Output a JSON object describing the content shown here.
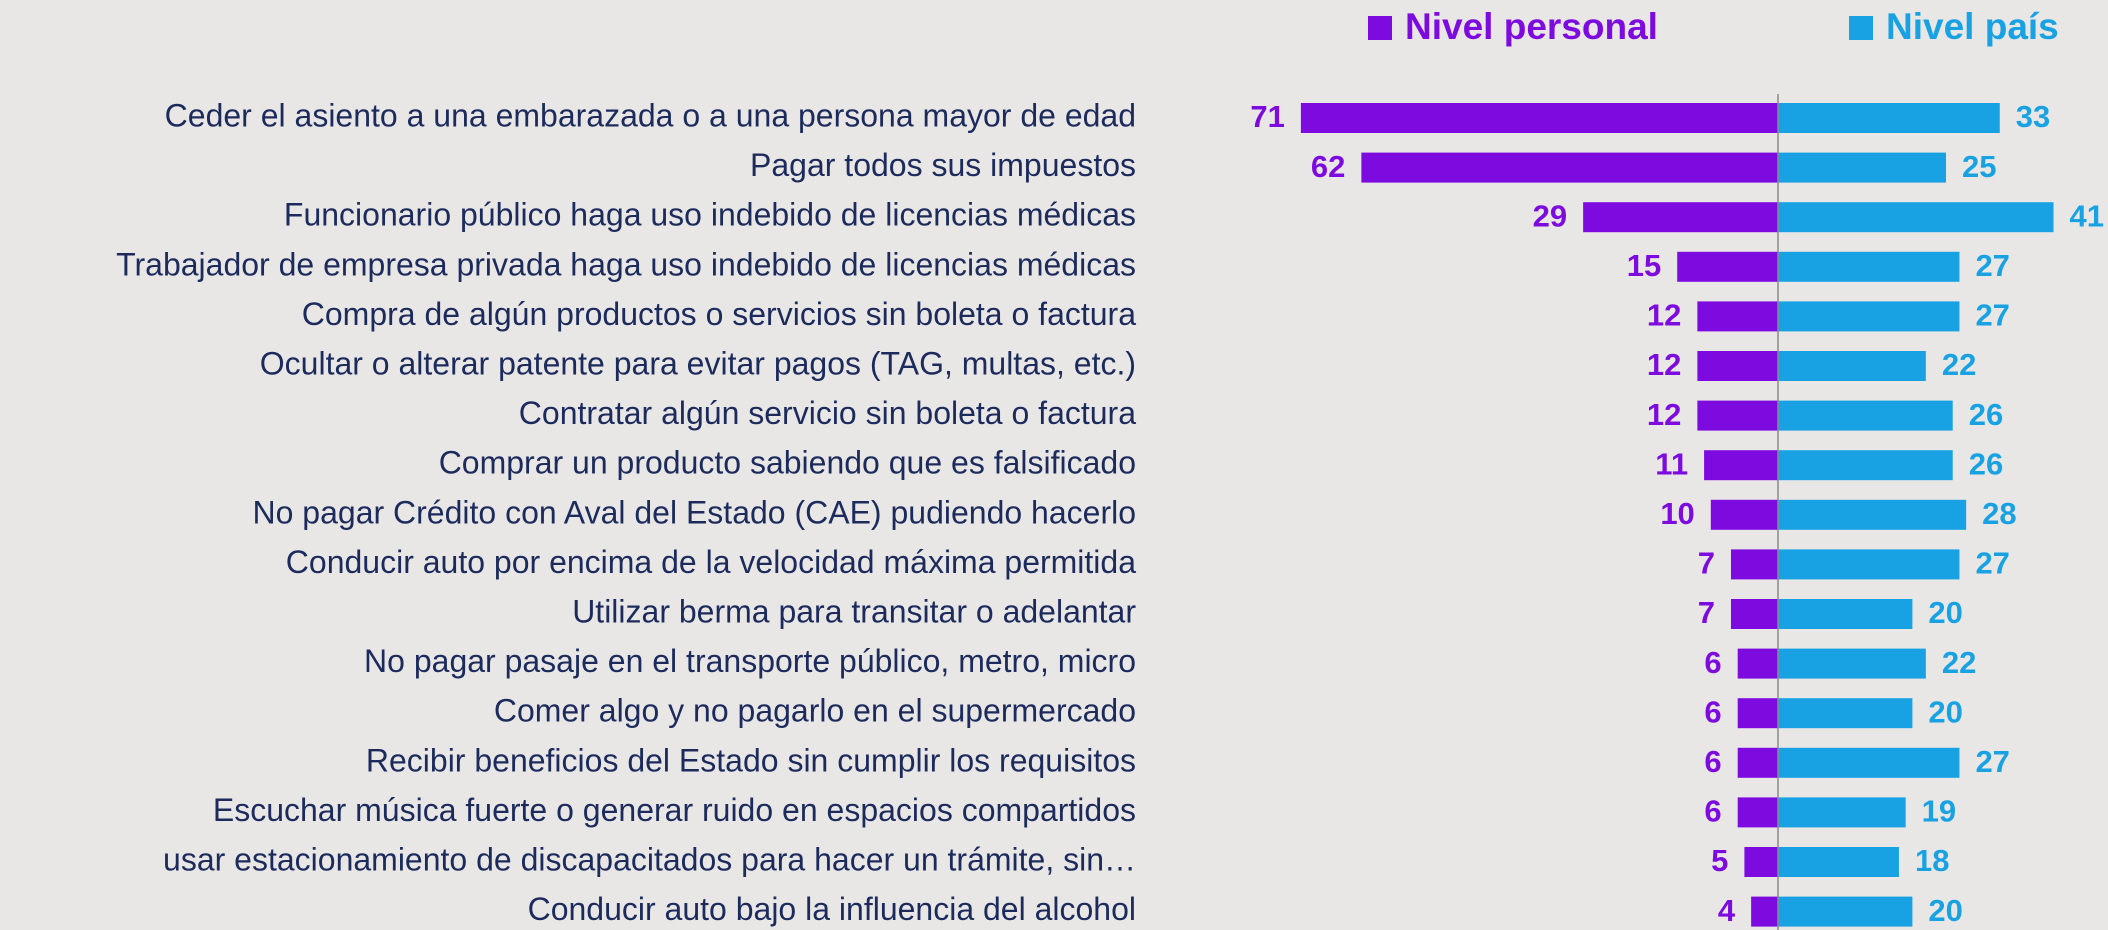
{
  "chart_data": {
    "type": "diverging-bar",
    "categories": [
      "Ceder el asiento a una embarazada o a una persona mayor de edad",
      "Pagar todos sus impuestos",
      "Funcionario público haga uso indebido de licencias médicas",
      "Trabajador de empresa privada haga uso indebido de licencias médicas",
      "Compra de algún productos o servicios sin boleta o factura",
      "Ocultar o alterar patente para evitar pagos (TAG, multas, etc.)",
      "Contratar algún servicio sin boleta o factura",
      "Comprar un producto sabiendo que es falsificado",
      "No pagar Crédito con Aval del Estado (CAE) pudiendo hacerlo",
      "Conducir auto por encima de la velocidad máxima permitida",
      "Utilizar berma para transitar o adelantar",
      "No pagar pasaje en el transporte público, metro, micro",
      "Comer algo y no pagarlo en el supermercado",
      "Recibir beneficios del Estado sin cumplir los requisitos",
      "Escuchar música fuerte o generar ruido en espacios compartidos",
      "usar estacionamiento de discapacitados para hacer un trámite, sin…",
      "Conducir auto bajo la influencia del alcohol"
    ],
    "series": [
      {
        "name": "Nivel personal",
        "color": "#7d0be0",
        "values": [
          71,
          62,
          29,
          15,
          12,
          12,
          12,
          11,
          10,
          7,
          7,
          6,
          6,
          6,
          6,
          5,
          4
        ]
      },
      {
        "name": "Nivel país",
        "color": "#18a2e4",
        "values": [
          33,
          25,
          41,
          27,
          27,
          22,
          26,
          26,
          28,
          27,
          20,
          22,
          20,
          27,
          19,
          18,
          20
        ]
      }
    ]
  }
}
